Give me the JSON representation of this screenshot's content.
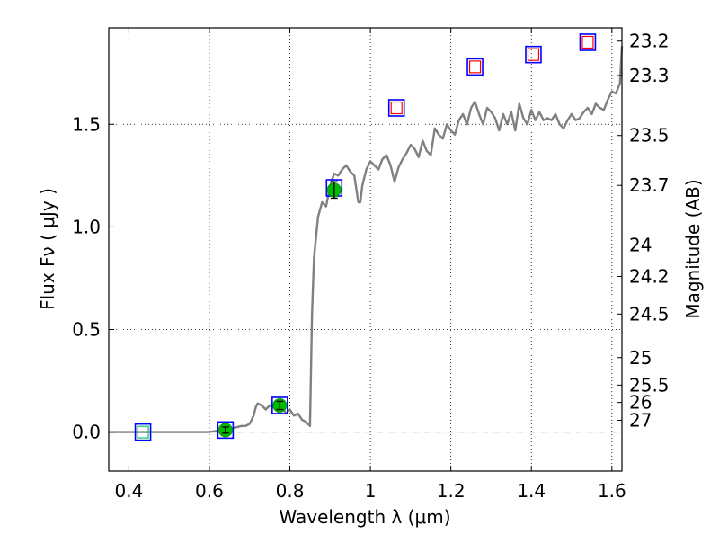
{
  "chart_data": {
    "type": "scatter",
    "xlabel": "Wavelength  λ (μm)",
    "ylabel": "Flux  Fν  ( μJy )",
    "y2label": "Magnitude (AB)",
    "xlim": [
      0.35,
      1.625
    ],
    "ylim": [
      -0.19,
      1.97
    ],
    "grid": true,
    "x_ticks": [
      {
        "value": 0.4,
        "label": "0.4"
      },
      {
        "value": 0.6,
        "label": "0.6"
      },
      {
        "value": 0.8,
        "label": "0.8"
      },
      {
        "value": 1.0,
        "label": "1"
      },
      {
        "value": 1.2,
        "label": "1.2"
      },
      {
        "value": 1.4,
        "label": "1.4"
      },
      {
        "value": 1.6,
        "label": "1.6"
      }
    ],
    "y_ticks": [
      {
        "value": 0.0,
        "label": "0.0"
      },
      {
        "value": 0.5,
        "label": "0.5"
      },
      {
        "value": 1.0,
        "label": "1.0"
      },
      {
        "value": 1.5,
        "label": "1.5"
      }
    ],
    "magnitude_ticks": [
      {
        "value": 23.2,
        "label": "23.2"
      },
      {
        "value": 23.3,
        "label": "23.3"
      },
      {
        "value": 23.5,
        "label": "23.5"
      },
      {
        "value": 23.7,
        "label": "23.7"
      },
      {
        "value": 24.0,
        "label": "24"
      },
      {
        "value": 24.2,
        "label": "24.2"
      },
      {
        "value": 24.5,
        "label": "24.5"
      },
      {
        "value": 25.0,
        "label": "25"
      },
      {
        "value": 25.5,
        "label": "25.5"
      },
      {
        "value": 26.0,
        "label": "26"
      },
      {
        "value": 27.0,
        "label": "27"
      }
    ],
    "series": [
      {
        "role": "model_spectrum",
        "color": "#808080",
        "x": [
          0.35,
          0.4,
          0.45,
          0.5,
          0.55,
          0.6,
          0.63,
          0.65,
          0.66,
          0.68,
          0.69,
          0.7,
          0.71,
          0.715,
          0.72,
          0.73,
          0.74,
          0.75,
          0.76,
          0.77,
          0.78,
          0.79,
          0.8,
          0.81,
          0.82,
          0.83,
          0.84,
          0.845,
          0.85,
          0.855,
          0.86,
          0.87,
          0.88,
          0.89,
          0.9,
          0.91,
          0.92,
          0.93,
          0.94,
          0.95,
          0.96,
          0.97,
          0.975,
          0.98,
          0.99,
          1.0,
          1.01,
          1.02,
          1.03,
          1.04,
          1.05,
          1.06,
          1.07,
          1.08,
          1.09,
          1.1,
          1.11,
          1.12,
          1.13,
          1.14,
          1.15,
          1.16,
          1.17,
          1.18,
          1.19,
          1.2,
          1.21,
          1.22,
          1.23,
          1.24,
          1.25,
          1.26,
          1.27,
          1.28,
          1.29,
          1.3,
          1.31,
          1.32,
          1.33,
          1.34,
          1.35,
          1.36,
          1.37,
          1.38,
          1.39,
          1.4,
          1.41,
          1.42,
          1.43,
          1.44,
          1.45,
          1.46,
          1.47,
          1.48,
          1.49,
          1.5,
          1.51,
          1.52,
          1.53,
          1.54,
          1.55,
          1.56,
          1.57,
          1.58,
          1.59,
          1.6,
          1.61,
          1.62,
          1.625
        ],
        "y": [
          0.0,
          0.0,
          0.0,
          0.0,
          0.0,
          0.0,
          0.01,
          0.01,
          0.02,
          0.03,
          0.03,
          0.04,
          0.08,
          0.12,
          0.14,
          0.13,
          0.11,
          0.13,
          0.12,
          0.1,
          0.13,
          0.09,
          0.11,
          0.08,
          0.09,
          0.06,
          0.05,
          0.04,
          0.03,
          0.58,
          0.85,
          1.05,
          1.12,
          1.1,
          1.2,
          1.26,
          1.25,
          1.28,
          1.3,
          1.27,
          1.25,
          1.12,
          1.12,
          1.2,
          1.28,
          1.32,
          1.3,
          1.28,
          1.33,
          1.35,
          1.3,
          1.22,
          1.29,
          1.33,
          1.36,
          1.4,
          1.38,
          1.34,
          1.42,
          1.37,
          1.35,
          1.48,
          1.45,
          1.43,
          1.5,
          1.47,
          1.45,
          1.52,
          1.55,
          1.5,
          1.58,
          1.61,
          1.55,
          1.5,
          1.58,
          1.56,
          1.53,
          1.47,
          1.55,
          1.5,
          1.56,
          1.47,
          1.6,
          1.53,
          1.5,
          1.57,
          1.52,
          1.56,
          1.52,
          1.53,
          1.52,
          1.55,
          1.5,
          1.48,
          1.52,
          1.55,
          1.52,
          1.53,
          1.56,
          1.58,
          1.55,
          1.6,
          1.58,
          1.57,
          1.62,
          1.66,
          1.65,
          1.7,
          1.88
        ]
      },
      {
        "role": "model_photometry",
        "marker": "open-square",
        "color": "#0000ff",
        "x": [
          0.435,
          0.64,
          0.775,
          0.91,
          1.065,
          1.26,
          1.405,
          1.54
        ],
        "y": [
          0.0,
          0.01,
          0.13,
          1.19,
          1.58,
          1.78,
          1.84,
          1.9
        ]
      },
      {
        "role": "predicted_flux",
        "marker": "open-square",
        "color": "#ff0000",
        "x": [
          1.065,
          1.26,
          1.405,
          1.54
        ],
        "y": [
          1.58,
          1.78,
          1.84,
          1.9
        ]
      },
      {
        "role": "observed_photometry",
        "marker": "filled-circle",
        "color": "#00bb00",
        "x": [
          0.64,
          0.775,
          0.91
        ],
        "y": [
          0.01,
          0.13,
          1.18
        ],
        "yerr": [
          0.015,
          0.02,
          0.04
        ]
      },
      {
        "role": "nondetection",
        "marker": "open-square",
        "color": "#00cc66",
        "x": [
          0.435
        ],
        "y": [
          0.0
        ]
      }
    ]
  }
}
